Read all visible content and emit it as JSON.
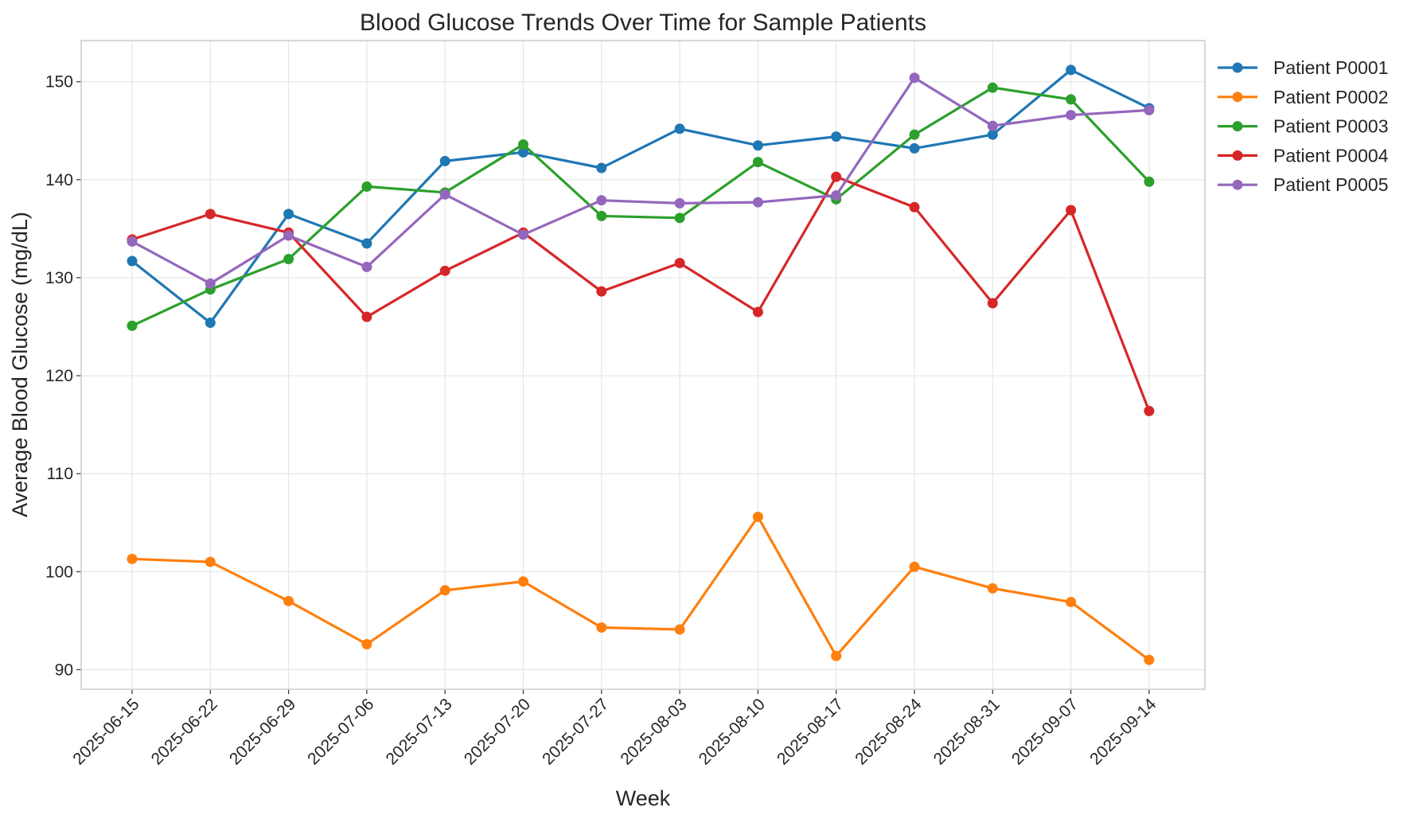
{
  "chart_data": {
    "type": "line",
    "title": "Blood Glucose Trends Over Time for Sample Patients",
    "xlabel": "Week",
    "ylabel": "Average Blood Glucose (mg/dL)",
    "ylim": [
      88,
      154.2
    ],
    "yticks": [
      90,
      100,
      110,
      120,
      130,
      140,
      150
    ],
    "grid": true,
    "legend_position": "outside right, top",
    "categories": [
      "2025-06-15",
      "2025-06-22",
      "2025-06-29",
      "2025-07-06",
      "2025-07-13",
      "2025-07-20",
      "2025-07-27",
      "2025-08-03",
      "2025-08-10",
      "2025-08-17",
      "2025-08-24",
      "2025-08-31",
      "2025-09-07",
      "2025-09-14"
    ],
    "series": [
      {
        "name": "Patient P0001",
        "color": "#1f77b4",
        "values": [
          131.7,
          125.4,
          136.5,
          133.5,
          141.9,
          142.8,
          141.2,
          145.2,
          143.5,
          144.4,
          143.2,
          144.6,
          151.2,
          147.3
        ]
      },
      {
        "name": "Patient P0002",
        "color": "#ff7f0e",
        "values": [
          101.3,
          101.0,
          97.0,
          92.6,
          98.1,
          99.0,
          94.3,
          94.1,
          105.6,
          91.4,
          100.5,
          98.3,
          96.9,
          91.0
        ]
      },
      {
        "name": "Patient P0003",
        "color": "#2ca02c",
        "values": [
          125.1,
          128.8,
          131.9,
          139.3,
          138.7,
          143.6,
          136.3,
          136.1,
          141.8,
          138.0,
          144.6,
          149.4,
          148.2,
          139.8
        ]
      },
      {
        "name": "Patient P0004",
        "color": "#d62728",
        "values": [
          133.9,
          136.5,
          134.6,
          126.0,
          130.7,
          134.6,
          128.6,
          131.5,
          126.5,
          140.3,
          137.2,
          127.4,
          136.9,
          116.4
        ]
      },
      {
        "name": "Patient P0005",
        "color": "#9467bd",
        "values": [
          133.7,
          129.4,
          134.3,
          131.1,
          138.5,
          134.4,
          137.9,
          137.6,
          137.7,
          138.4,
          150.4,
          145.5,
          146.6,
          147.1
        ]
      }
    ]
  }
}
